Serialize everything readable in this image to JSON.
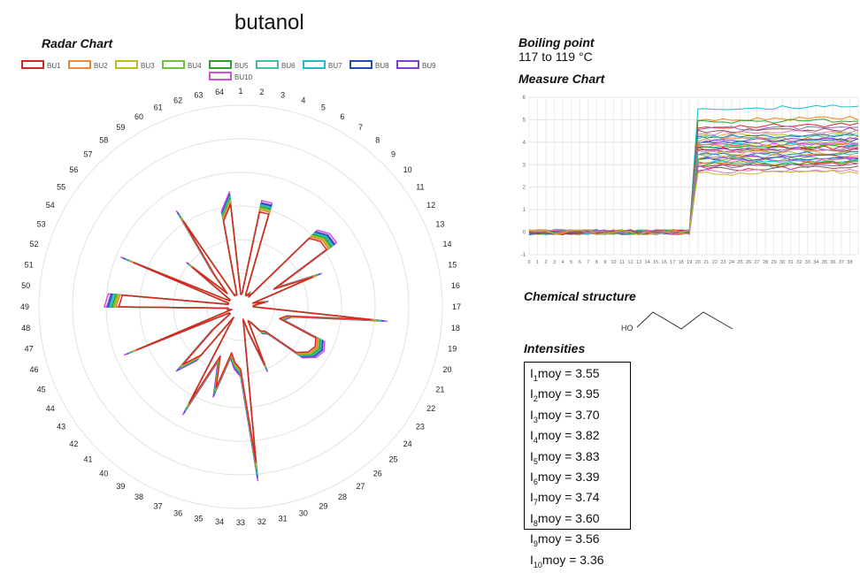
{
  "page": {
    "title": "butanol"
  },
  "radar": {
    "heading": "Radar Chart",
    "axis_labels": [
      "1",
      "2",
      "3",
      "4",
      "5",
      "6",
      "7",
      "8",
      "9",
      "10",
      "11",
      "12",
      "13",
      "14",
      "15",
      "16",
      "17",
      "18",
      "19",
      "20",
      "21",
      "22",
      "23",
      "24",
      "25",
      "26",
      "27",
      "28",
      "29",
      "30",
      "31",
      "32",
      "33",
      "34",
      "35",
      "36",
      "37",
      "38",
      "39",
      "40",
      "41",
      "42",
      "43",
      "44",
      "45",
      "46",
      "47",
      "48",
      "49",
      "50",
      "51",
      "52",
      "53",
      "54",
      "55",
      "56",
      "57",
      "58",
      "59",
      "60",
      "61",
      "62",
      "63",
      "64"
    ]
  },
  "boiling": {
    "heading": "Boiling point",
    "value": "117 to 119 °C"
  },
  "measure": {
    "heading": "Measure Chart",
    "y_ticks": [
      "-1",
      "0",
      "1",
      "2",
      "3",
      "4",
      "5",
      "6"
    ],
    "x_ticks": [
      "0",
      "1",
      "2",
      "3",
      "4",
      "5",
      "6",
      "7",
      "8",
      "9",
      "10",
      "11",
      "12",
      "13",
      "14",
      "15",
      "16",
      "17",
      "18",
      "19",
      "20",
      "21",
      "22",
      "23",
      "24",
      "25",
      "26",
      "27",
      "28",
      "29",
      "30",
      "31",
      "32",
      "33",
      "34",
      "35",
      "36",
      "37",
      "38"
    ]
  },
  "structure": {
    "heading": "Chemical structure",
    "ho_label": "HO"
  },
  "intensities": {
    "heading": "Intensities",
    "rows": [
      {
        "sub": "1",
        "val": "moy = 3.55"
      },
      {
        "sub": "2",
        "val": "moy = 3.95"
      },
      {
        "sub": "3",
        "val": "moy  = 3.70"
      },
      {
        "sub": "4",
        "val": "moy = 3.82"
      },
      {
        "sub": "5",
        "val": "moy = 3.83"
      },
      {
        "sub": "6",
        "val": "moy = 3.39"
      },
      {
        "sub": "7",
        "val": "moy = 3.74"
      },
      {
        "sub": "8",
        "val": "moy  = 3.60"
      },
      {
        "sub": "9",
        "val": "moy  = 3.56"
      },
      {
        "sub": "10",
        "val": "moy  = 3.36"
      }
    ]
  },
  "chart_data": [
    {
      "type": "radar",
      "title": "Radar Chart",
      "axes": [
        "1",
        "2",
        "3",
        "4",
        "5",
        "6",
        "7",
        "8",
        "9",
        "10",
        "11",
        "12",
        "13",
        "14",
        "15",
        "16",
        "17",
        "18",
        "19",
        "20",
        "21",
        "22",
        "23",
        "24",
        "25",
        "26",
        "27",
        "28",
        "29",
        "30",
        "31",
        "32",
        "33",
        "34",
        "35",
        "36",
        "37",
        "38",
        "39",
        "40",
        "41",
        "42",
        "43",
        "44",
        "45",
        "46",
        "47",
        "48",
        "49",
        "50",
        "51",
        "52",
        "53",
        "54",
        "55",
        "56",
        "57",
        "58",
        "59",
        "60",
        "61",
        "62",
        "63",
        "64"
      ],
      "rlim": [
        0,
        6
      ],
      "grid": true,
      "legend_position": "top",
      "base_profile": [
        0.4,
        0.4,
        3.1,
        3.1,
        0.4,
        0.4,
        0.5,
        0.4,
        3.1,
        3.3,
        3.3,
        1.2,
        2.5,
        0.4,
        0.8,
        0.4,
        0.4,
        4.2,
        1.5,
        1.3,
        2.6,
        2.7,
        2.6,
        2.3,
        1.1,
        1.0,
        0.6,
        0.5,
        2.0,
        0.8,
        0.4,
        5.0,
        2.0,
        1.8,
        1.5,
        2.7,
        1.7,
        3.5,
        0.4,
        2.0,
        2.6,
        1.1,
        0.4,
        0.4,
        3.6,
        0.3,
        0.4,
        0.4,
        3.9,
        3.8,
        0.4,
        0.4,
        3.7,
        0.4,
        0.4,
        2.0,
        0.6,
        1.3,
        3.3,
        0.4,
        0.4,
        0.4,
        2.8,
        3.3
      ],
      "series": [
        {
          "name": "BU1",
          "color": "#d62728",
          "scale": 0.93
        },
        {
          "name": "BU2",
          "color": "#e8883a",
          "scale": 0.95
        },
        {
          "name": "BU3",
          "color": "#bcbd22",
          "scale": 0.96
        },
        {
          "name": "BU4",
          "color": "#72c043",
          "scale": 0.97
        },
        {
          "name": "BU5",
          "color": "#2ca02c",
          "scale": 0.98
        },
        {
          "name": "BU6",
          "color": "#3fbfa0",
          "scale": 0.99
        },
        {
          "name": "BU7",
          "color": "#17becf",
          "scale": 1.0
        },
        {
          "name": "BU8",
          "color": "#1f4fb4",
          "scale": 1.01
        },
        {
          "name": "BU9",
          "color": "#7b3fd6",
          "scale": 1.02
        },
        {
          "name": "BU10",
          "color": "#d24fe0",
          "scale": 1.04
        }
      ]
    },
    {
      "type": "line",
      "title": "Measure Chart",
      "x": [
        0,
        1,
        2,
        3,
        4,
        5,
        6,
        7,
        8,
        9,
        10,
        11,
        12,
        13,
        14,
        15,
        16,
        17,
        18,
        19,
        20,
        21,
        22,
        23,
        24,
        25,
        26,
        27,
        28,
        29,
        30,
        31,
        32,
        33,
        34,
        35,
        36,
        37,
        38,
        39
      ],
      "xlim": [
        0,
        39
      ],
      "ylim": [
        -1,
        6
      ],
      "step_at": 20,
      "baseline": 0,
      "series_levels": [
        5.5,
        5.0,
        4.9,
        4.7,
        4.6,
        4.5,
        4.4,
        4.3,
        4.25,
        4.2,
        4.1,
        4.05,
        4.0,
        3.95,
        3.9,
        3.85,
        3.8,
        3.75,
        3.7,
        3.65,
        3.6,
        3.55,
        3.5,
        3.45,
        3.4,
        3.35,
        3.3,
        3.25,
        3.2,
        3.15,
        3.1,
        3.05,
        3.0,
        2.95,
        2.9,
        2.8,
        2.7,
        2.6
      ],
      "colors": [
        "#17becf",
        "#ff7f0e",
        "#2ca02c",
        "#d62728",
        "#9467bd",
        "#8c564b",
        "#e377c2",
        "#bcbd22",
        "#1f77b4",
        "#3fbfa0",
        "#e8883a",
        "#7b3fd6",
        "#1f4fb4",
        "#72c043",
        "#d24fe0"
      ],
      "grid": true
    }
  ]
}
